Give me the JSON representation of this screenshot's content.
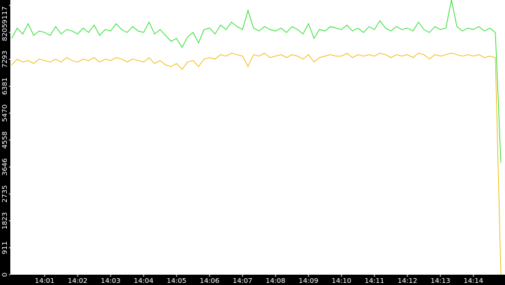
{
  "chart_data": {
    "type": "line",
    "categories": [
      null,
      null,
      null,
      null,
      null,
      null,
      "14:01",
      null,
      null,
      null,
      null,
      null,
      "14:02",
      null,
      null,
      null,
      null,
      null,
      "14:03",
      null,
      null,
      null,
      null,
      null,
      "14:04",
      null,
      null,
      null,
      null,
      null,
      "14:05",
      null,
      null,
      null,
      null,
      null,
      "14:06",
      null,
      null,
      null,
      null,
      null,
      "14:07",
      null,
      null,
      null,
      null,
      null,
      "14:08",
      null,
      null,
      null,
      null,
      null,
      "14:09",
      null,
      null,
      null,
      null,
      null,
      "14:10",
      null,
      null,
      null,
      null,
      null,
      "14:11",
      null,
      null,
      null,
      null,
      null,
      "14:12",
      null,
      null,
      null,
      null,
      null,
      "14:13",
      null,
      null,
      null,
      null,
      null,
      "14:14",
      null,
      null,
      null,
      null,
      null
    ],
    "series": [
      {
        "color": "#22dd22",
        "values": [
          8000,
          8350,
          8150,
          8500,
          8100,
          8250,
          8200,
          8100,
          8400,
          8150,
          8300,
          8250,
          8150,
          8350,
          8200,
          8450,
          8100,
          8300,
          8250,
          8500,
          8300,
          8200,
          8400,
          8250,
          8200,
          8550,
          8150,
          8300,
          8100,
          7900,
          8000,
          7700,
          8050,
          8200,
          7850,
          8300,
          8350,
          8150,
          8450,
          8300,
          8550,
          8400,
          8300,
          8950,
          8350,
          8250,
          8400,
          8300,
          8250,
          8350,
          8200,
          8400,
          8300,
          8150,
          8500,
          8000,
          8300,
          8250,
          8400,
          8350,
          8300,
          8450,
          8250,
          8350,
          8200,
          8400,
          8300,
          8600,
          8350,
          8250,
          8400,
          8300,
          8350,
          8250,
          8550,
          8300,
          8200,
          8400,
          8300,
          8350,
          9300,
          8400,
          8250,
          8350,
          8300,
          8400,
          8250,
          8350,
          8200,
          3800
        ]
      },
      {
        "color": "#f0b800",
        "values": [
          7100,
          7300,
          7200,
          7250,
          7150,
          7300,
          7250,
          7200,
          7300,
          7200,
          7350,
          7250,
          7200,
          7300,
          7250,
          7350,
          7200,
          7300,
          7250,
          7350,
          7300,
          7200,
          7300,
          7250,
          7200,
          7350,
          7150,
          7250,
          7100,
          7050,
          7150,
          6950,
          7200,
          7250,
          7050,
          7300,
          7350,
          7300,
          7450,
          7400,
          7500,
          7450,
          7400,
          7050,
          7450,
          7400,
          7500,
          7350,
          7400,
          7450,
          7350,
          7450,
          7400,
          7300,
          7450,
          7200,
          7350,
          7400,
          7450,
          7400,
          7400,
          7500,
          7350,
          7450,
          7400,
          7450,
          7400,
          7500,
          7450,
          7350,
          7450,
          7400,
          7450,
          7350,
          7500,
          7450,
          7300,
          7450,
          7400,
          7450,
          7500,
          7450,
          7400,
          7450,
          7400,
          7450,
          7350,
          7400,
          7350,
          0
        ]
      }
    ],
    "ylim": [
      0,
      9300
    ],
    "yticks": [
      0,
      911,
      1823,
      2735,
      3646,
      4558,
      5470,
      6381,
      7293,
      8205,
      9117
    ]
  }
}
